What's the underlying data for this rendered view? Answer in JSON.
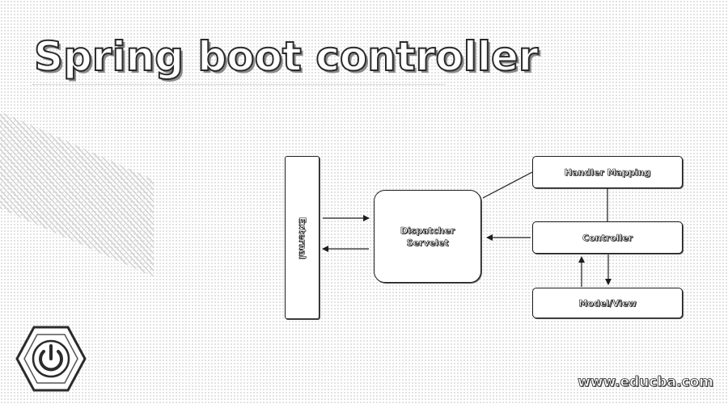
{
  "title": "Spring boot controller",
  "website": "www.educba.com",
  "diagram": {
    "external": "External",
    "dispatcher": [
      "Dispatcher",
      "Servelet"
    ],
    "handler_mapping": "Handler Mapping",
    "controller": "Controller",
    "model_view": "Model/View",
    "edges": [
      {
        "from": "external",
        "to": "dispatcher",
        "type": "arrow"
      },
      {
        "from": "dispatcher",
        "to": "external",
        "type": "arrow"
      },
      {
        "from": "dispatcher",
        "to": "handler_mapping",
        "type": "line"
      },
      {
        "from": "handler_mapping",
        "to": "controller",
        "type": "line"
      },
      {
        "from": "controller",
        "to": "dispatcher",
        "type": "arrow"
      },
      {
        "from": "controller",
        "to": "model_view",
        "type": "arrow"
      },
      {
        "from": "model_view",
        "to": "controller",
        "type": "arrow"
      }
    ]
  },
  "logo_icon": "power-icon"
}
